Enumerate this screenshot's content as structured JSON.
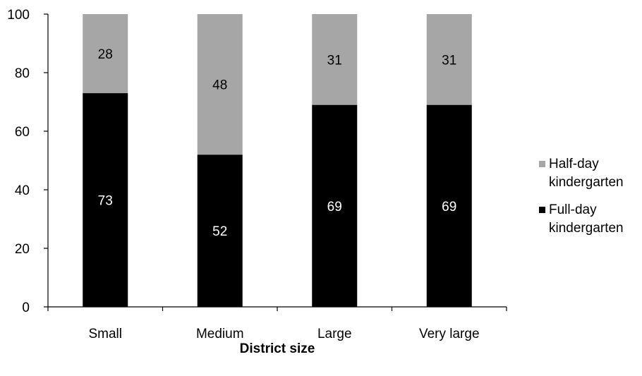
{
  "chart_data": {
    "type": "bar",
    "stacked": true,
    "categories": [
      "Small",
      "Medium",
      "Large",
      "Very large"
    ],
    "series": [
      {
        "name": "Full-day kindergarten",
        "values": [
          73,
          52,
          69,
          69
        ],
        "color": "#000000",
        "label_color": "#ffffff"
      },
      {
        "name": "Half-day kindergarten",
        "values": [
          28,
          48,
          31,
          31
        ],
        "color": "#a6a6a6",
        "label_color": "#000000"
      }
    ],
    "title": "",
    "xlabel": "District size",
    "ylabel": "",
    "ylim": [
      0,
      100
    ],
    "yticks": [
      0,
      20,
      40,
      60,
      80,
      100
    ],
    "legend": {
      "position": "right",
      "entries": [
        {
          "line1": "Half-day",
          "line2": "kindergarten"
        },
        {
          "line1": "Full-day",
          "line2": "kindergarten"
        }
      ]
    },
    "grid": false
  }
}
